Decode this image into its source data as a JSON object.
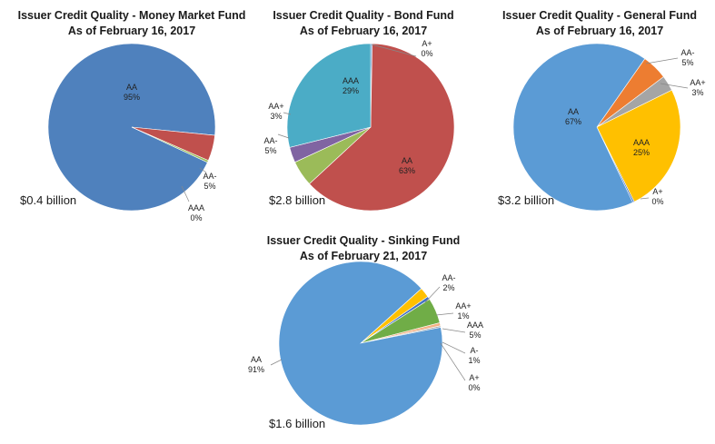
{
  "chart_data": [
    {
      "type": "pie",
      "title": "Issuer Credit Quality - Money Market  Fund",
      "subtitle": "As of February 16, 2017",
      "total_label": "$0.4 billion",
      "slices": [
        {
          "label": "AA",
          "pct_label": "95%",
          "value": 95,
          "color": "#4F81BD"
        },
        {
          "label": "AA-",
          "pct_label": "5%",
          "value": 5,
          "color": "#C0504D"
        },
        {
          "label": "AAA",
          "pct_label": "0%",
          "value": 0.4,
          "color": "#9BBB59"
        }
      ]
    },
    {
      "type": "pie",
      "title": "Issuer Credit Quality - Bond Fund",
      "subtitle": "As of February 16, 2017",
      "total_label": "$2.8 billion",
      "slices": [
        {
          "label": "A+",
          "pct_label": "0%",
          "value": 0.3,
          "color": "#4F81BD"
        },
        {
          "label": "AA",
          "pct_label": "63%",
          "value": 63,
          "color": "#C0504D"
        },
        {
          "label": "AA-",
          "pct_label": "5%",
          "value": 5,
          "color": "#9BBB59"
        },
        {
          "label": "AA+",
          "pct_label": "3%",
          "value": 3,
          "color": "#8064A2"
        },
        {
          "label": "AAA",
          "pct_label": "29%",
          "value": 29,
          "color": "#4BACC6"
        }
      ]
    },
    {
      "type": "pie",
      "title": "Issuer Credit Quality - General Fund",
      "subtitle": "As of February 16, 2017",
      "total_label": "$3.2 billion",
      "slices": [
        {
          "label": "AA-",
          "pct_label": "5%",
          "value": 5,
          "color": "#ED7D31"
        },
        {
          "label": "AA+",
          "pct_label": "3%",
          "value": 3,
          "color": "#A5A5A5"
        },
        {
          "label": "AAA",
          "pct_label": "25%",
          "value": 25,
          "color": "#FFC000"
        },
        {
          "label": "A+",
          "pct_label": "0%",
          "value": 0.3,
          "color": "#4472C4"
        },
        {
          "label": "AA",
          "pct_label": "67%",
          "value": 67,
          "color": "#5B9BD5"
        }
      ]
    },
    {
      "type": "pie",
      "title": "Issuer Credit Quality - Sinking Fund",
      "subtitle": "As of February 21, 2017",
      "total_label": "$1.6 billion",
      "slices": [
        {
          "label": "AA-",
          "pct_label": "2%",
          "value": 2,
          "color": "#FFC000"
        },
        {
          "label": "AA+",
          "pct_label": "1%",
          "value": 0.6,
          "color": "#4472C4"
        },
        {
          "label": "AAA",
          "pct_label": "5%",
          "value": 5,
          "color": "#70AD47"
        },
        {
          "label": "A-",
          "pct_label": "1%",
          "value": 0.6,
          "color": "#F4B183"
        },
        {
          "label": "A+",
          "pct_label": "0%",
          "value": 0.3,
          "color": "#A5A5A5"
        },
        {
          "label": "AA",
          "pct_label": "91%",
          "value": 91,
          "color": "#5B9BD5"
        }
      ]
    }
  ]
}
